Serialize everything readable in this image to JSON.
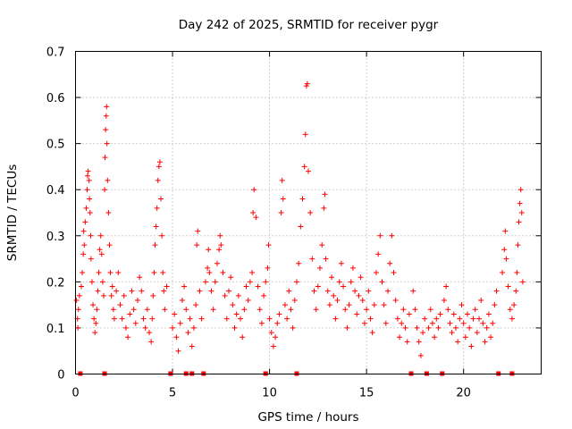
{
  "chart_data": {
    "type": "scatter",
    "title": "Day 242 of 2025, SRMTID for receiver pygr",
    "xlabel": "GPS time / hours",
    "ylabel": "SRMTID / TECUs",
    "xlim": [
      0,
      24
    ],
    "ylim": [
      0,
      0.7
    ],
    "xticks": [
      0,
      5,
      10,
      15,
      20
    ],
    "xtick_labels": [
      "0",
      "5",
      "10",
      "15",
      "20"
    ],
    "yticks": [
      0,
      0.1,
      0.2,
      0.3,
      0.4,
      0.5,
      0.6,
      0.7
    ],
    "ytick_labels": [
      "0",
      "0.1",
      "0.2",
      "0.3",
      "0.4",
      "0.5",
      "0.6",
      "0.7"
    ],
    "grid": true,
    "marker": "+",
    "color": "#ff0000",
    "gap_markers_x": [
      0.25,
      1.5,
      4.9,
      5.7,
      6.0,
      6.6,
      9.8,
      11.4,
      17.3,
      18.1,
      18.9,
      21.8,
      22.5
    ],
    "series": [
      {
        "name": "SRMTID",
        "points": [
          [
            0.05,
            0.16
          ],
          [
            0.1,
            0.12
          ],
          [
            0.12,
            0.1
          ],
          [
            0.15,
            0.14
          ],
          [
            0.2,
            0.17
          ],
          [
            0.3,
            0.19
          ],
          [
            0.35,
            0.22
          ],
          [
            0.4,
            0.26
          ],
          [
            0.42,
            0.31
          ],
          [
            0.45,
            0.28
          ],
          [
            0.5,
            0.33
          ],
          [
            0.55,
            0.36
          ],
          [
            0.6,
            0.4
          ],
          [
            0.62,
            0.43
          ],
          [
            0.65,
            0.44
          ],
          [
            0.7,
            0.42
          ],
          [
            0.72,
            0.38
          ],
          [
            0.75,
            0.35
          ],
          [
            0.78,
            0.3
          ],
          [
            0.8,
            0.25
          ],
          [
            0.85,
            0.2
          ],
          [
            0.9,
            0.15
          ],
          [
            0.95,
            0.12
          ],
          [
            1.0,
            0.09
          ],
          [
            1.05,
            0.11
          ],
          [
            1.1,
            0.14
          ],
          [
            1.15,
            0.18
          ],
          [
            1.2,
            0.22
          ],
          [
            1.25,
            0.27
          ],
          [
            1.3,
            0.3
          ],
          [
            1.35,
            0.26
          ],
          [
            1.4,
            0.2
          ],
          [
            1.45,
            0.17
          ],
          [
            1.5,
            0.4
          ],
          [
            1.52,
            0.47
          ],
          [
            1.55,
            0.53
          ],
          [
            1.58,
            0.56
          ],
          [
            1.6,
            0.58
          ],
          [
            1.62,
            0.5
          ],
          [
            1.65,
            0.42
          ],
          [
            1.7,
            0.35
          ],
          [
            1.75,
            0.28
          ],
          [
            1.8,
            0.22
          ],
          [
            1.85,
            0.17
          ],
          [
            1.9,
            0.19
          ],
          [
            1.95,
            0.14
          ],
          [
            2.0,
            0.12
          ],
          [
            2.1,
            0.18
          ],
          [
            2.2,
            0.22
          ],
          [
            2.3,
            0.15
          ],
          [
            2.4,
            0.12
          ],
          [
            2.5,
            0.17
          ],
          [
            2.6,
            0.1
          ],
          [
            2.7,
            0.08
          ],
          [
            2.8,
            0.13
          ],
          [
            2.9,
            0.18
          ],
          [
            3.0,
            0.14
          ],
          [
            3.1,
            0.11
          ],
          [
            3.2,
            0.16
          ],
          [
            3.3,
            0.21
          ],
          [
            3.4,
            0.18
          ],
          [
            3.5,
            0.12
          ],
          [
            3.6,
            0.1
          ],
          [
            3.7,
            0.14
          ],
          [
            3.8,
            0.09
          ],
          [
            3.9,
            0.07
          ],
          [
            3.95,
            0.12
          ],
          [
            4.0,
            0.17
          ],
          [
            4.05,
            0.22
          ],
          [
            4.1,
            0.28
          ],
          [
            4.15,
            0.32
          ],
          [
            4.2,
            0.36
          ],
          [
            4.25,
            0.42
          ],
          [
            4.3,
            0.45
          ],
          [
            4.35,
            0.46
          ],
          [
            4.4,
            0.38
          ],
          [
            4.45,
            0.3
          ],
          [
            4.5,
            0.22
          ],
          [
            4.55,
            0.18
          ],
          [
            4.6,
            0.14
          ],
          [
            4.7,
            0.19
          ],
          [
            5.0,
            0.1
          ],
          [
            5.1,
            0.13
          ],
          [
            5.2,
            0.08
          ],
          [
            5.3,
            0.05
          ],
          [
            5.4,
            0.11
          ],
          [
            5.5,
            0.16
          ],
          [
            5.6,
            0.19
          ],
          [
            5.7,
            0.14
          ],
          [
            5.8,
            0.09
          ],
          [
            5.9,
            0.12
          ],
          [
            6.0,
            0.06
          ],
          [
            6.1,
            0.1
          ],
          [
            6.2,
            0.15
          ],
          [
            6.25,
            0.28
          ],
          [
            6.3,
            0.31
          ],
          [
            6.4,
            0.18
          ],
          [
            6.5,
            0.12
          ],
          [
            6.7,
            0.2
          ],
          [
            6.8,
            0.23
          ],
          [
            6.85,
            0.27
          ],
          [
            6.9,
            0.22
          ],
          [
            7.0,
            0.18
          ],
          [
            7.1,
            0.14
          ],
          [
            7.2,
            0.2
          ],
          [
            7.3,
            0.24
          ],
          [
            7.4,
            0.27
          ],
          [
            7.45,
            0.3
          ],
          [
            7.5,
            0.28
          ],
          [
            7.6,
            0.22
          ],
          [
            7.7,
            0.17
          ],
          [
            7.8,
            0.12
          ],
          [
            7.9,
            0.18
          ],
          [
            8.0,
            0.21
          ],
          [
            8.1,
            0.15
          ],
          [
            8.2,
            0.1
          ],
          [
            8.3,
            0.13
          ],
          [
            8.4,
            0.17
          ],
          [
            8.5,
            0.12
          ],
          [
            8.6,
            0.08
          ],
          [
            8.7,
            0.14
          ],
          [
            8.8,
            0.19
          ],
          [
            8.9,
            0.16
          ],
          [
            9.0,
            0.2
          ],
          [
            9.1,
            0.22
          ],
          [
            9.15,
            0.35
          ],
          [
            9.2,
            0.4
          ],
          [
            9.3,
            0.34
          ],
          [
            9.4,
            0.19
          ],
          [
            9.5,
            0.14
          ],
          [
            9.6,
            0.11
          ],
          [
            9.7,
            0.17
          ],
          [
            9.8,
            0.2
          ],
          [
            9.9,
            0.23
          ],
          [
            9.95,
            0.28
          ],
          [
            10.0,
            0.12
          ],
          [
            10.1,
            0.09
          ],
          [
            10.2,
            0.06
          ],
          [
            10.3,
            0.08
          ],
          [
            10.4,
            0.11
          ],
          [
            10.5,
            0.13
          ],
          [
            10.6,
            0.35
          ],
          [
            10.65,
            0.42
          ],
          [
            10.7,
            0.38
          ],
          [
            10.8,
            0.15
          ],
          [
            10.9,
            0.12
          ],
          [
            11.0,
            0.18
          ],
          [
            11.1,
            0.14
          ],
          [
            11.2,
            0.1
          ],
          [
            11.3,
            0.16
          ],
          [
            11.4,
            0.2
          ],
          [
            11.5,
            0.24
          ],
          [
            11.6,
            0.32
          ],
          [
            11.7,
            0.38
          ],
          [
            11.8,
            0.45
          ],
          [
            11.85,
            0.52
          ],
          [
            11.9,
            0.625
          ],
          [
            11.95,
            0.63
          ],
          [
            12.0,
            0.44
          ],
          [
            12.1,
            0.35
          ],
          [
            12.2,
            0.25
          ],
          [
            12.3,
            0.18
          ],
          [
            12.4,
            0.14
          ],
          [
            12.5,
            0.19
          ],
          [
            12.6,
            0.23
          ],
          [
            12.7,
            0.28
          ],
          [
            12.8,
            0.36
          ],
          [
            12.85,
            0.39
          ],
          [
            12.9,
            0.25
          ],
          [
            13.0,
            0.18
          ],
          [
            13.1,
            0.15
          ],
          [
            13.2,
            0.21
          ],
          [
            13.3,
            0.17
          ],
          [
            13.4,
            0.12
          ],
          [
            13.5,
            0.16
          ],
          [
            13.6,
            0.2
          ],
          [
            13.7,
            0.24
          ],
          [
            13.8,
            0.19
          ],
          [
            13.9,
            0.14
          ],
          [
            14.0,
            0.1
          ],
          [
            14.1,
            0.15
          ],
          [
            14.2,
            0.2
          ],
          [
            14.3,
            0.23
          ],
          [
            14.4,
            0.18
          ],
          [
            14.5,
            0.13
          ],
          [
            14.6,
            0.17
          ],
          [
            14.7,
            0.21
          ],
          [
            14.8,
            0.16
          ],
          [
            14.9,
            0.11
          ],
          [
            15.0,
            0.14
          ],
          [
            15.1,
            0.18
          ],
          [
            15.2,
            0.12
          ],
          [
            15.3,
            0.09
          ],
          [
            15.4,
            0.15
          ],
          [
            15.5,
            0.22
          ],
          [
            15.6,
            0.26
          ],
          [
            15.7,
            0.3
          ],
          [
            15.8,
            0.2
          ],
          [
            15.9,
            0.15
          ],
          [
            16.0,
            0.11
          ],
          [
            16.1,
            0.18
          ],
          [
            16.2,
            0.24
          ],
          [
            16.3,
            0.3
          ],
          [
            16.4,
            0.22
          ],
          [
            16.5,
            0.16
          ],
          [
            16.6,
            0.12
          ],
          [
            16.7,
            0.08
          ],
          [
            16.8,
            0.11
          ],
          [
            16.9,
            0.14
          ],
          [
            17.0,
            0.1
          ],
          [
            17.1,
            0.07
          ],
          [
            17.2,
            0.13
          ],
          [
            17.4,
            0.18
          ],
          [
            17.5,
            0.14
          ],
          [
            17.6,
            0.1
          ],
          [
            17.7,
            0.07
          ],
          [
            17.8,
            0.04
          ],
          [
            17.9,
            0.09
          ],
          [
            18.0,
            0.12
          ],
          [
            18.2,
            0.1
          ],
          [
            18.3,
            0.14
          ],
          [
            18.4,
            0.11
          ],
          [
            18.5,
            0.08
          ],
          [
            18.6,
            0.12
          ],
          [
            18.7,
            0.1
          ],
          [
            18.8,
            0.13
          ],
          [
            19.0,
            0.16
          ],
          [
            19.1,
            0.19
          ],
          [
            19.2,
            0.14
          ],
          [
            19.3,
            0.11
          ],
          [
            19.4,
            0.09
          ],
          [
            19.5,
            0.13
          ],
          [
            19.6,
            0.1
          ],
          [
            19.7,
            0.07
          ],
          [
            19.8,
            0.12
          ],
          [
            19.9,
            0.15
          ],
          [
            20.0,
            0.11
          ],
          [
            20.1,
            0.08
          ],
          [
            20.2,
            0.13
          ],
          [
            20.3,
            0.1
          ],
          [
            20.4,
            0.06
          ],
          [
            20.5,
            0.12
          ],
          [
            20.6,
            0.14
          ],
          [
            20.7,
            0.09
          ],
          [
            20.8,
            0.12
          ],
          [
            20.9,
            0.16
          ],
          [
            21.0,
            0.11
          ],
          [
            21.1,
            0.07
          ],
          [
            21.2,
            0.1
          ],
          [
            21.3,
            0.13
          ],
          [
            21.4,
            0.08
          ],
          [
            21.5,
            0.11
          ],
          [
            21.6,
            0.15
          ],
          [
            21.7,
            0.18
          ],
          [
            22.0,
            0.22
          ],
          [
            22.1,
            0.27
          ],
          [
            22.15,
            0.31
          ],
          [
            22.2,
            0.25
          ],
          [
            22.3,
            0.19
          ],
          [
            22.4,
            0.14
          ],
          [
            22.5,
            0.12
          ],
          [
            22.6,
            0.15
          ],
          [
            22.7,
            0.18
          ],
          [
            22.75,
            0.22
          ],
          [
            22.8,
            0.28
          ],
          [
            22.85,
            0.33
          ],
          [
            22.9,
            0.37
          ],
          [
            22.95,
            0.4
          ],
          [
            23.0,
            0.35
          ],
          [
            23.05,
            0.2
          ]
        ]
      }
    ]
  }
}
